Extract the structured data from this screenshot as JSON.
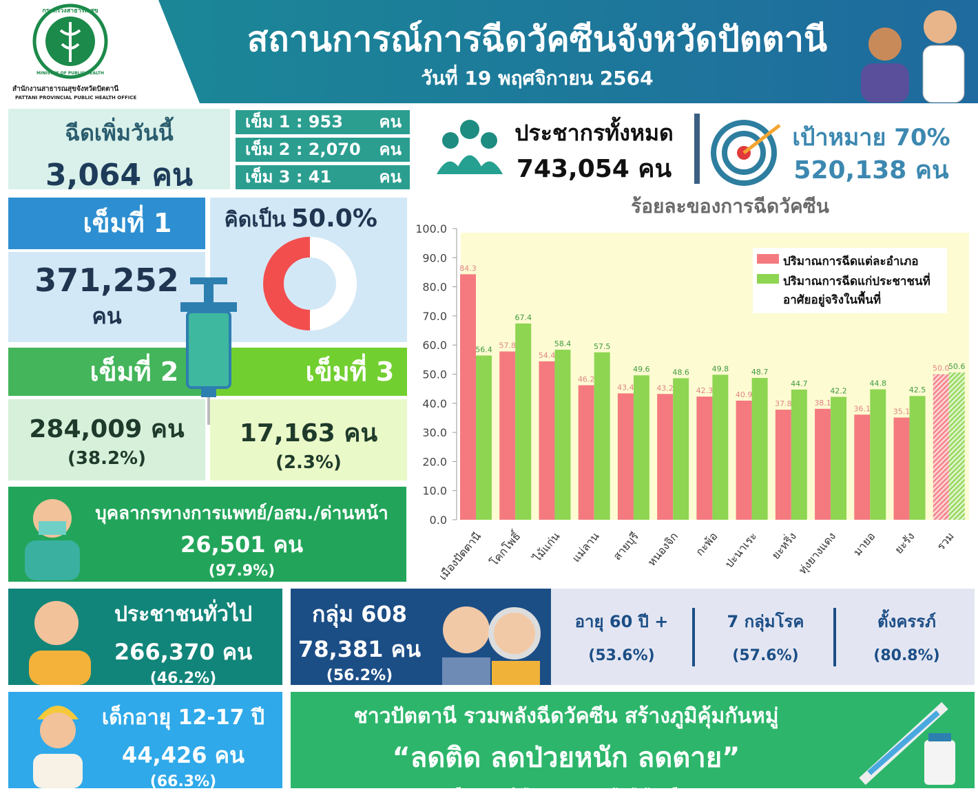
{
  "header": {
    "title": "สถานการณ์การฉีดวัคซีนจังหวัดปัตตานี",
    "date": "วันที่ 19 พฤศจิกายน 2564",
    "logo_text": "กระทรวงสาธารณสุข",
    "logo_en": "MINISTRY OF PUBLIC HEALTH",
    "org_th": "สำนักงานสาธารณสุขจังหวัดปัตตานี",
    "org_en": "PATTANI PROVINCIAL PUBLIC HEALTH OFFICE"
  },
  "today": {
    "label": "ฉีดเพิ่มวันนี้",
    "total": "3,064 คน",
    "doses": [
      {
        "label": "เข็ม 1 : 953",
        "unit": "คน"
      },
      {
        "label": "เข็ม 2 : 2,070",
        "unit": "คน"
      },
      {
        "label": "เข็ม 3 : 41",
        "unit": "คน"
      }
    ]
  },
  "population": {
    "label": "ประชากรทั้งหมด",
    "value": "743,054 คน"
  },
  "target": {
    "label": "เป้าหมาย 70%",
    "value": "520,138 คน"
  },
  "dose1": {
    "title": "เข็มที่ 1",
    "count": "371,252",
    "unit": "คน"
  },
  "dose2": {
    "title": "เข็มที่ 2",
    "count": "284,009 คน",
    "percent": "(38.2%)"
  },
  "dose3": {
    "title": "เข็มที่ 3",
    "count": "17,163 คน",
    "percent": "(2.3%)"
  },
  "staff": {
    "label": "บุคลากรทางการแพทย์/อสม./ด่านหน้า",
    "count": "26,501 คน",
    "percent": "(97.9%)"
  },
  "general": {
    "label": "ประชาชนทั่วไป",
    "count": "266,370 คน",
    "percent": "(46.2%)"
  },
  "group608": {
    "label": "กลุ่ม 608",
    "count": "78,381 คน",
    "percent": "(56.2%)",
    "breakdown": [
      {
        "label": "อายุ 60 ปี +",
        "percent": "(53.6%)"
      },
      {
        "label": "7 กลุ่มโรค",
        "percent": "(57.6%)"
      },
      {
        "label": "ตั้งครรภ์",
        "percent": "(80.8%)"
      }
    ]
  },
  "children": {
    "label": "เด็กอายุ 12-17 ปี",
    "count": "44,426 คน",
    "percent": "(66.3%)"
  },
  "slogan": {
    "line1": "ชาวปัตตานี รวมพลังฉีดวัคซีน สร้างภูมิคุ้มกันหมู่",
    "line2": "“ลดติด ลดป่วยหนัก ลดตาย”",
    "credit": "ทีม STAG สำนักงานสาธารณสุขจังหวัดปัตตานี"
  },
  "chart_data": [
    {
      "type": "bar",
      "title": "ร้อยละของการฉีดวัคซีน",
      "categories": [
        "เมืองปัตตานี",
        "โคกโพธิ์",
        "ไม้แก่น",
        "แม่ลาน",
        "สายบุรี",
        "หนองจิก",
        "กะพ้อ",
        "ปะนาเระ",
        "ยะหริ่ง",
        "ทุ่งยางแดง",
        "มายอ",
        "ยะรัง",
        "รวม"
      ],
      "series": [
        {
          "name": "ปริมาณการฉีดแต่ละอำเภอ",
          "color": "#f47a80",
          "label_color": "#e08585",
          "values": [
            84.3,
            57.8,
            54.4,
            46.2,
            43.4,
            43.2,
            42.3,
            40.9,
            37.8,
            38.1,
            36.1,
            35.1,
            50.0
          ],
          "value_labels": [
            "84.3",
            "57.8",
            "54.4",
            "46.2",
            "43.4",
            "43.2",
            "42.3",
            "40.9",
            "37.8",
            "38.1",
            "36.1",
            "35.1",
            "50.0"
          ]
        },
        {
          "name": "ปริมาณการฉีดแก่ประชาชนที่อาศัยอยู่จริงในพื้นที่",
          "color": "#8ed552",
          "label_color": "#3f9a3f",
          "values": [
            56.4,
            67.4,
            58.4,
            57.5,
            49.6,
            48.6,
            49.8,
            48.7,
            44.7,
            42.2,
            44.8,
            42.5,
            50.6
          ],
          "value_labels": [
            "56.4",
            "67.4",
            "58.4",
            "57.5",
            "49.6",
            "48.6",
            "49.8",
            "48.7",
            "44.7",
            "42.2",
            "44.8",
            "42.5",
            "50.6"
          ]
        }
      ],
      "hatched_category": "รวม",
      "ylim": [
        0,
        100
      ],
      "yticks": [
        {
          "value": 0,
          "label": "0.0"
        },
        {
          "value": 10,
          "label": "10.0"
        },
        {
          "value": 20,
          "label": "20.0"
        },
        {
          "value": 30,
          "label": "30.0"
        },
        {
          "value": 40,
          "label": "40.0"
        },
        {
          "value": 50,
          "label": "50.0"
        },
        {
          "value": 60,
          "label": "60.0"
        },
        {
          "value": 70,
          "label": "70.0"
        },
        {
          "value": 80,
          "label": "80.0"
        },
        {
          "value": 90,
          "label": "90.0"
        },
        {
          "value": 100,
          "label": "100.0"
        }
      ],
      "grid": false,
      "plot_background": "#fdfbd2",
      "legend": "upper right"
    },
    {
      "type": "pie",
      "title": "คิดเป็น",
      "values": [
        50.0
      ],
      "value_labels": [
        "50.0%"
      ],
      "color": "#f24e4e",
      "ylim": [
        0,
        100
      ]
    }
  ]
}
